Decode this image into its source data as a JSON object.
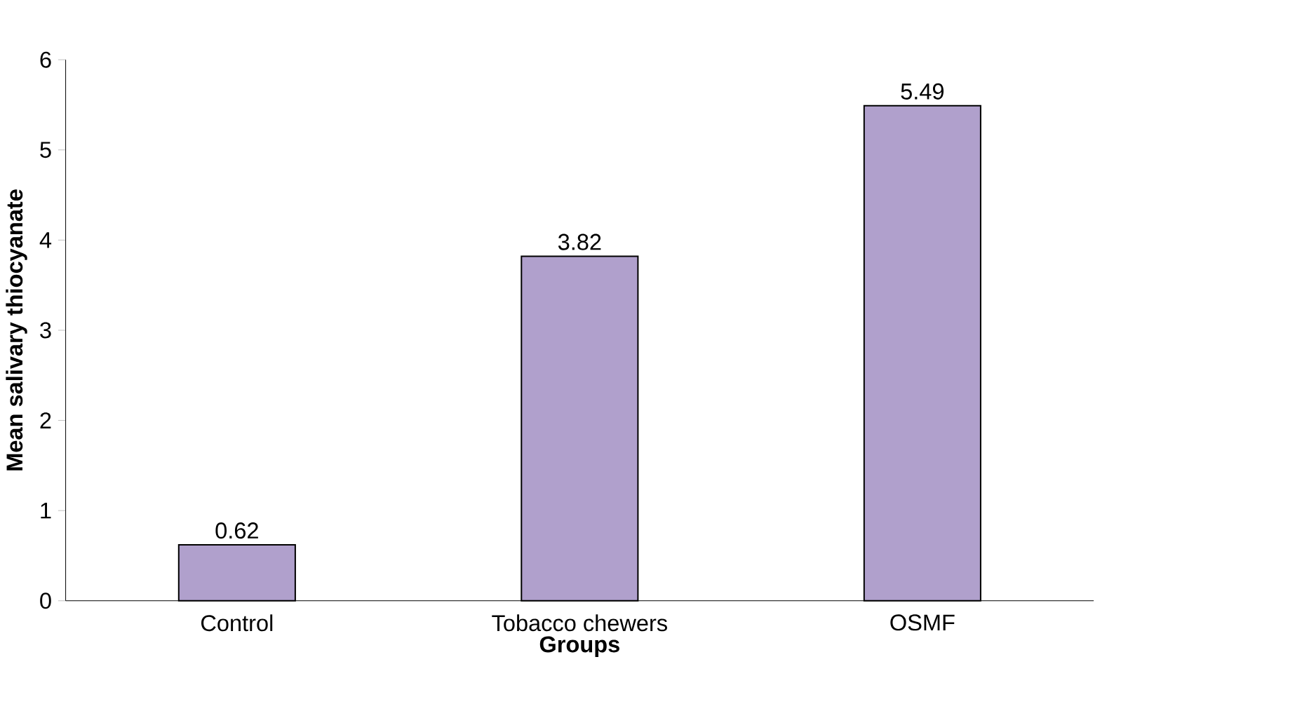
{
  "chart_data": {
    "type": "bar",
    "xlabel": "Groups",
    "ylabel": "Mean salivary thiocyanate",
    "categories": [
      "Control",
      "Tobacco chewers",
      "OSMF"
    ],
    "values": [
      0.62,
      3.82,
      5.49
    ],
    "color": "#b0a0cc",
    "ylim": [
      0,
      6
    ],
    "yticks": [
      0,
      1,
      2,
      3,
      4,
      5,
      6
    ],
    "grid": false,
    "data_labels": true
  }
}
